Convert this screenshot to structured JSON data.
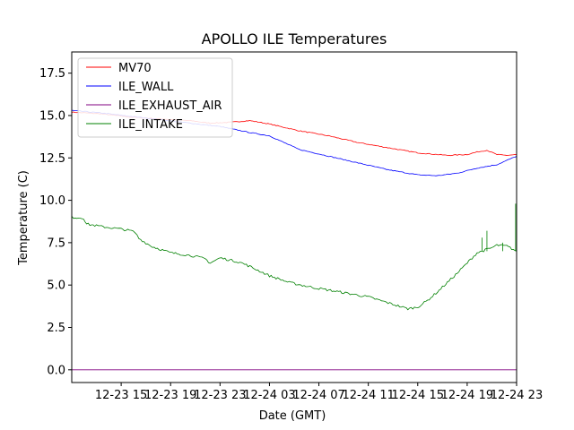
{
  "chart_data": {
    "type": "line",
    "title": "APOLLO ILE Temperatures",
    "xlabel": "Date (GMT)",
    "ylabel": "Temperature (C)",
    "xlim": [
      0,
      45
    ],
    "ylim": [
      -0.75,
      18.75
    ],
    "yticks": [
      0.0,
      2.5,
      5.0,
      7.5,
      10.0,
      12.5,
      15.0,
      17.5
    ],
    "ytick_labels": [
      "0.0",
      "2.5",
      "5.0",
      "7.5",
      "10.0",
      "12.5",
      "15.0",
      "17.5"
    ],
    "xticks": [
      5,
      10,
      15,
      20,
      25,
      30,
      35,
      40,
      45
    ],
    "xtick_labels": [
      "12-23 15",
      "12-23 19",
      "12-23 23",
      "12-24 03",
      "12-24 07",
      "12-24 11",
      "12-24 15",
      "12-24 19",
      "12-24 23"
    ],
    "x_unit": "hours since 12-23 10:00 GMT",
    "legend_position": "top-left",
    "series": [
      {
        "name": "MV70",
        "color": "#ff0000",
        "x": [
          0,
          3,
          6,
          9,
          12,
          14,
          16,
          18,
          20,
          23,
          26,
          29,
          32,
          35,
          38,
          40,
          41,
          42,
          43,
          44,
          45
        ],
        "y": [
          15.2,
          15.1,
          14.9,
          14.8,
          14.7,
          14.55,
          14.6,
          14.7,
          14.5,
          14.1,
          13.8,
          13.4,
          13.1,
          12.8,
          12.65,
          12.7,
          12.85,
          12.95,
          12.7,
          12.65,
          12.7
        ]
      },
      {
        "name": "ILE_WALL",
        "color": "#0000ff",
        "x": [
          0,
          3,
          6,
          9,
          12,
          15,
          18,
          20,
          23,
          26,
          29,
          32,
          35,
          37,
          39,
          41,
          43,
          44,
          45
        ],
        "y": [
          15.3,
          15.15,
          14.95,
          14.75,
          14.55,
          14.35,
          14.0,
          13.8,
          13.0,
          12.6,
          12.2,
          11.8,
          11.5,
          11.45,
          11.6,
          11.9,
          12.1,
          12.35,
          12.6
        ]
      },
      {
        "name": "ILE_EXHAUST_AIR",
        "color": "#800080",
        "x": [
          0,
          45
        ],
        "y": [
          0.0,
          0.0
        ]
      },
      {
        "name": "ILE_INTAKE",
        "color": "#008000",
        "x": [
          0,
          1.2,
          1.5,
          3,
          5,
          6,
          6.4,
          6.8,
          8,
          10,
          12,
          13.5,
          14,
          15,
          17,
          18,
          20,
          22,
          24,
          26,
          28,
          30,
          32,
          34,
          35,
          36,
          37,
          38,
          39,
          40,
          41,
          42,
          42.5,
          43,
          44,
          45
        ],
        "y": [
          9.0,
          8.95,
          8.6,
          8.45,
          8.3,
          8.2,
          8.1,
          7.75,
          7.3,
          6.9,
          6.75,
          6.55,
          6.3,
          6.6,
          6.35,
          6.1,
          5.55,
          5.15,
          4.9,
          4.7,
          4.5,
          4.3,
          3.95,
          3.6,
          3.7,
          4.1,
          4.6,
          5.15,
          5.7,
          6.3,
          6.9,
          7.1,
          7.2,
          7.35,
          7.3,
          7.0
        ]
      }
    ]
  }
}
